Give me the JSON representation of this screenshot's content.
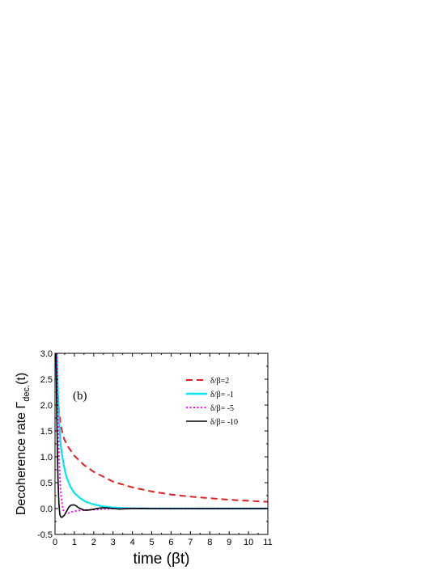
{
  "chart_data": {
    "type": "line",
    "panel_label": "(b)",
    "xlabel": "time (βt)",
    "ylabel_main": "Decoherence rate Γ",
    "ylabel_sub": "dec.",
    "ylabel_tail": "(t)",
    "xlim": [
      0,
      11
    ],
    "ylim": [
      -0.5,
      3.0
    ],
    "xticks": [
      "0",
      "1",
      "2",
      "3",
      "4",
      "5",
      "6",
      "7",
      "8",
      "9",
      "10",
      "11"
    ],
    "yticks": [
      "-0.5",
      "0.0",
      "0.5",
      "1.0",
      "1.5",
      "2.0",
      "2.5",
      "3.0"
    ],
    "grid": false,
    "legend_position": "top-right",
    "series": [
      {
        "name": "δ/β=2",
        "color": "#e02020",
        "dash": "dashed",
        "x": [
          0.07,
          0.1,
          0.15,
          0.2,
          0.3,
          0.4,
          0.5,
          0.7,
          1.0,
          1.5,
          2.0,
          3.0,
          4.0,
          5.0,
          6.0,
          7.0,
          8.0,
          9.0,
          10.0,
          11.0
        ],
        "y": [
          3.0,
          2.6,
          2.2,
          1.9,
          1.6,
          1.43,
          1.32,
          1.18,
          1.02,
          0.84,
          0.71,
          0.52,
          0.41,
          0.33,
          0.27,
          0.23,
          0.2,
          0.17,
          0.15,
          0.13
        ]
      },
      {
        "name": "δ/β= -1",
        "color": "#00e5f0",
        "dash": "solid",
        "x": [
          0.1,
          0.15,
          0.2,
          0.25,
          0.3,
          0.4,
          0.5,
          0.6,
          0.8,
          1.0,
          1.3,
          1.6,
          2.0,
          2.5,
          3.0,
          3.5,
          4.0,
          5.0,
          6.0,
          8.0,
          11.0
        ],
        "y": [
          3.0,
          2.2,
          1.75,
          1.45,
          1.2,
          0.95,
          0.75,
          0.6,
          0.42,
          0.3,
          0.2,
          0.13,
          0.08,
          0.04,
          0.02,
          0.01,
          0.005,
          0.0,
          0.0,
          0.0,
          0.0
        ]
      },
      {
        "name": "δ/β= -5",
        "color": "#ff00ff",
        "dash": "dotted",
        "x": [
          0.1,
          0.15,
          0.2,
          0.25,
          0.3,
          0.4,
          0.5,
          0.6,
          0.7,
          0.8,
          1.0,
          1.2,
          1.5,
          2.0,
          2.5,
          3.0,
          4.0,
          5.0,
          11.0
        ],
        "y": [
          3.0,
          1.8,
          1.1,
          0.6,
          0.3,
          0.0,
          -0.08,
          -0.1,
          -0.09,
          -0.07,
          -0.05,
          -0.04,
          -0.03,
          -0.02,
          -0.01,
          0.0,
          0.0,
          0.0,
          0.0
        ]
      },
      {
        "name": "δ/β= -10",
        "color": "#000000",
        "dash": "solid",
        "x": [
          0.05,
          0.1,
          0.15,
          0.2,
          0.25,
          0.3,
          0.35,
          0.4,
          0.5,
          0.6,
          0.7,
          0.8,
          0.9,
          1.0,
          1.1,
          1.2,
          1.3,
          1.5,
          1.7,
          1.9,
          2.1,
          2.3,
          2.5,
          2.7,
          3.0,
          3.3,
          3.6,
          4.0,
          4.5,
          5.0,
          6.0,
          7.0,
          8.0,
          9.0,
          10.0,
          11.0
        ],
        "y": [
          3.0,
          1.6,
          0.6,
          0.1,
          -0.12,
          -0.16,
          -0.17,
          -0.16,
          -0.12,
          -0.05,
          0.02,
          0.06,
          0.07,
          0.07,
          0.05,
          0.02,
          0.0,
          -0.03,
          -0.03,
          -0.02,
          -0.005,
          0.01,
          0.015,
          0.01,
          0.0,
          -0.01,
          -0.005,
          0.0,
          0.003,
          0.0,
          0.0,
          0.0,
          0.0,
          0.0,
          0.0,
          0.0
        ]
      }
    ]
  }
}
